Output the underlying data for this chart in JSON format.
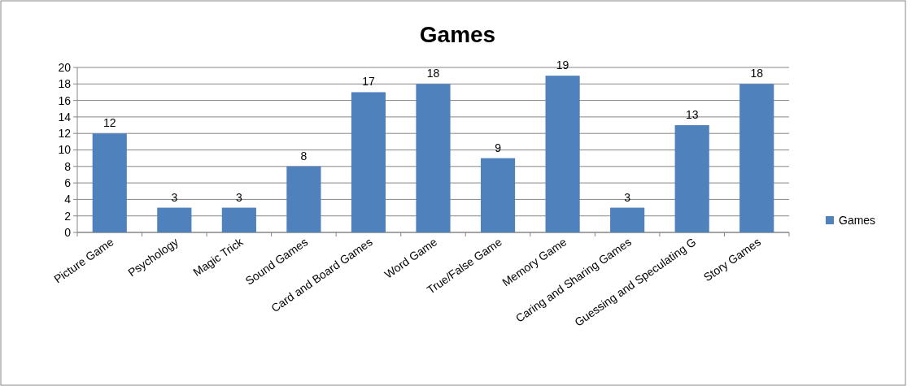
{
  "chart_data": {
    "type": "bar",
    "title": "Games",
    "categories": [
      "Picture Game",
      "Psychology",
      "Magic Trick",
      "Sound Games",
      "Card and Board Games",
      "Word Game",
      "True/False Game",
      "Memory Game",
      "Caring and Sharing Games",
      "Guessing and Speculating G",
      "Story Games"
    ],
    "series": [
      {
        "name": "Games",
        "color": "#4f81bd",
        "values": [
          12,
          3,
          3,
          8,
          17,
          18,
          9,
          19,
          3,
          13,
          18
        ]
      }
    ],
    "ylim": [
      0,
      20
    ],
    "yticks": [
      0,
      2,
      4,
      6,
      8,
      10,
      12,
      14,
      16,
      18,
      20
    ],
    "grid": "y",
    "legend": "right",
    "data_labels": true
  }
}
